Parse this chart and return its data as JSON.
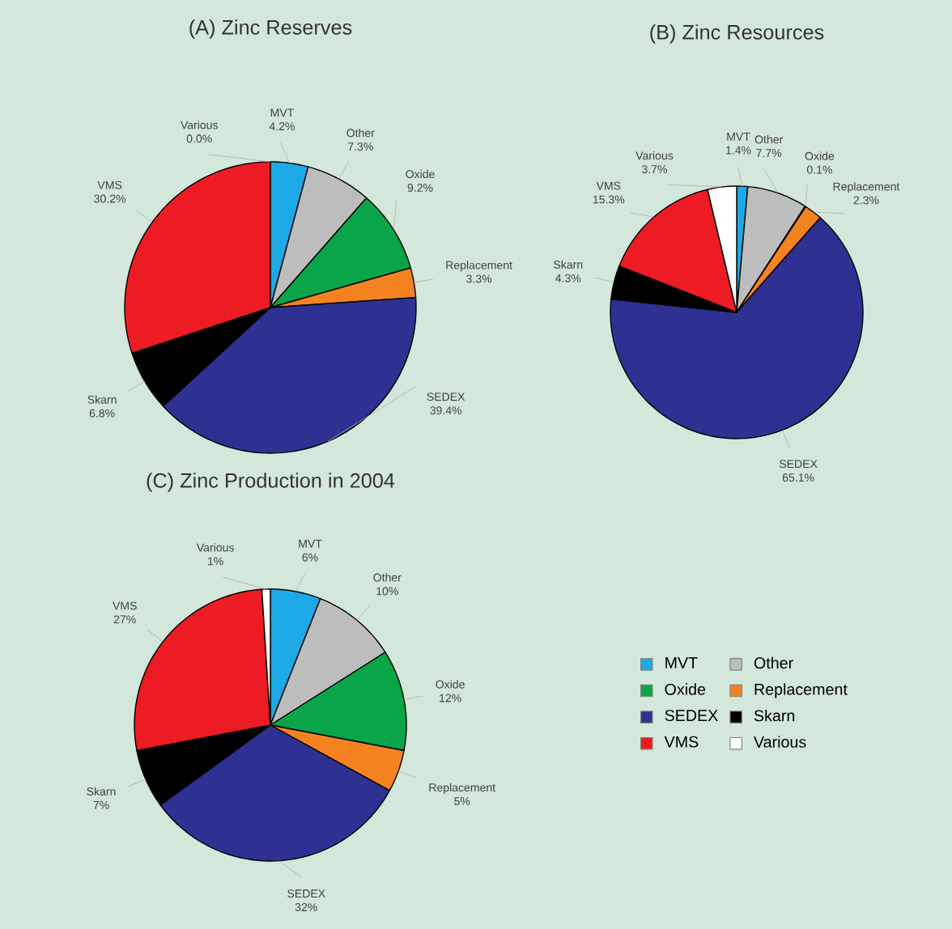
{
  "chart_data": [
    {
      "type": "pie",
      "title": "(A) Zinc Reserves",
      "categories": [
        "MVT",
        "Other",
        "Oxide",
        "Replacement",
        "SEDEX",
        "Skarn",
        "VMS",
        "Various"
      ],
      "values": [
        4.2,
        7.3,
        9.2,
        3.3,
        39.4,
        6.8,
        30.2,
        0.0
      ],
      "value_labels": [
        "4.2%",
        "7.3%",
        "9.2%",
        "3.3%",
        "39.4%",
        "6.8%",
        "30.2%",
        "0.0%"
      ],
      "colors": [
        "#1ca9e6",
        "#bdbdbd",
        "#0aa548",
        "#f58220",
        "#2e3192",
        "#000000",
        "#ed1c24",
        "#ffffff"
      ]
    },
    {
      "type": "pie",
      "title": "(B) Zinc Resources",
      "categories": [
        "MVT",
        "Other",
        "Oxide",
        "Replacement",
        "SEDEX",
        "Skarn",
        "VMS",
        "Various"
      ],
      "values": [
        1.4,
        7.7,
        0.1,
        2.3,
        65.1,
        4.3,
        15.3,
        3.7
      ],
      "value_labels": [
        "1.4%",
        "7.7%",
        "0.1%",
        "2.3%",
        "65.1%",
        "4.3%",
        "15.3%",
        "3.7%"
      ],
      "colors": [
        "#1ca9e6",
        "#bdbdbd",
        "#0aa548",
        "#f58220",
        "#2e3192",
        "#000000",
        "#ed1c24",
        "#ffffff"
      ]
    },
    {
      "type": "pie",
      "title": "(C) Zinc Production in 2004",
      "categories": [
        "MVT",
        "Other",
        "Oxide",
        "Replacement",
        "SEDEX",
        "Skarn",
        "VMS",
        "Various"
      ],
      "values": [
        6,
        10,
        12,
        5,
        32,
        7,
        27,
        1
      ],
      "value_labels": [
        "6%",
        "10%",
        "12%",
        "5%",
        "32%",
        "7%",
        "27%",
        "1%"
      ],
      "colors": [
        "#1ca9e6",
        "#bdbdbd",
        "#0aa548",
        "#f58220",
        "#2e3192",
        "#000000",
        "#ed1c24",
        "#ffffff"
      ],
      "legend": "right"
    }
  ]
}
